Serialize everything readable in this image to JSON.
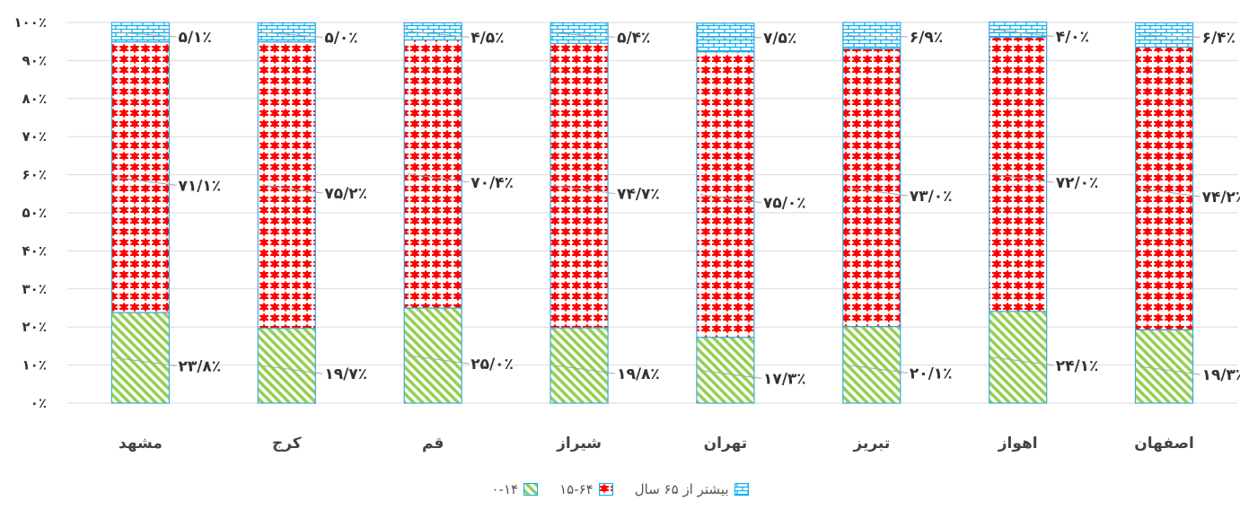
{
  "chart_data": {
    "type": "bar",
    "stacked": true,
    "categories": [
      "مشهد",
      "کرج",
      "قم",
      "شیراز",
      "تهران",
      "تبریز",
      "اهواز",
      "اصفهان"
    ],
    "series": [
      {
        "name": "۰-۱۴",
        "values": [
          23.8,
          19.7,
          25.0,
          19.8,
          17.3,
          20.1,
          24.1,
          19.3
        ],
        "color": "#92D050",
        "labels": [
          "۲۳/۸٪",
          "۱۹/۷٪",
          "۲۵/۰٪",
          "۱۹/۸٪",
          "۱۷/۳٪",
          "۲۰/۱٪",
          "۲۴/۱٪",
          "۱۹/۳٪"
        ]
      },
      {
        "name": "۱۵-۶۴",
        "values": [
          71.1,
          75.2,
          70.4,
          74.7,
          75.0,
          73.0,
          72.0,
          74.2
        ],
        "color": "#FF0000",
        "labels": [
          "۷۱/۱٪",
          "۷۵/۲٪",
          "۷۰/۴٪",
          "۷۴/۷٪",
          "۷۵/۰٪",
          "۷۳/۰٪",
          "۷۲/۰٪",
          "۷۴/۲٪"
        ]
      },
      {
        "name": "بیشتر از ۶۵ سال",
        "values": [
          5.1,
          5.0,
          4.5,
          5.4,
          7.5,
          6.9,
          4.0,
          6.4
        ],
        "color": "#00B0F0",
        "labels": [
          "۵/۱٪",
          "۵/۰٪",
          "۴/۵٪",
          "۵/۴٪",
          "۷/۵٪",
          "۶/۹٪",
          "۴/۰٪",
          "۶/۴٪"
        ]
      }
    ],
    "ylim": [
      0,
      100
    ],
    "yticks": [
      "۰٪",
      "۱۰٪",
      "۲۰٪",
      "۳۰٪",
      "۴۰٪",
      "۵۰٪",
      "۶۰٪",
      "۷۰٪",
      "۸۰٪",
      "۹۰٪",
      "۱۰۰٪"
    ],
    "grid": true,
    "legend_position": "bottom"
  }
}
